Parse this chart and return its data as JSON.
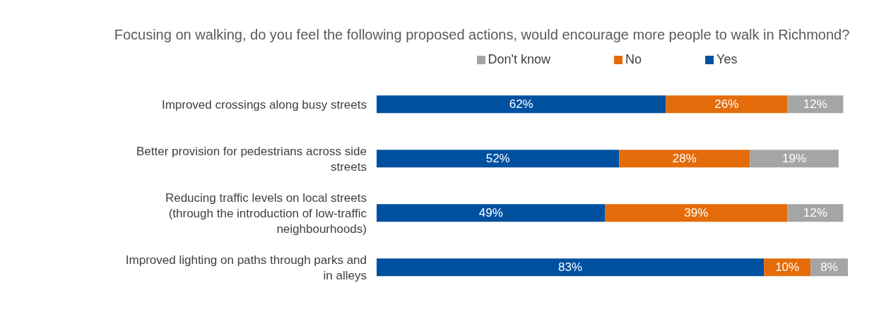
{
  "chart_data": {
    "type": "bar",
    "orientation": "horizontal",
    "stacked": true,
    "title": "Focusing on walking, do you feel the following proposed actions, would encourage more people to walk in Richmond?",
    "categories": [
      "Improved crossings along busy streets",
      "Better provision for pedestrians across side streets",
      "Reducing traffic levels on local streets (through the introduction of low-traffic neighbourhoods)",
      "Improved lighting on paths through parks and in alleys"
    ],
    "series": [
      {
        "name": "Yes",
        "color": "#0050a0",
        "values": [
          62,
          52,
          49,
          83
        ],
        "value_labels": [
          "62%",
          "52%",
          "49%",
          "83%"
        ]
      },
      {
        "name": "No",
        "color": "#e46c0a",
        "values": [
          26,
          28,
          39,
          10
        ],
        "value_labels": [
          "26%",
          "28%",
          "39%",
          "10%"
        ]
      },
      {
        "name": "Don't know",
        "color": "#a5a5a5",
        "values": [
          12,
          19,
          12,
          8
        ],
        "value_labels": [
          "12%",
          "19%",
          "12%",
          "8%"
        ]
      }
    ],
    "xlim": [
      0,
      101
    ],
    "legend": "top",
    "tick_labels": "y"
  }
}
